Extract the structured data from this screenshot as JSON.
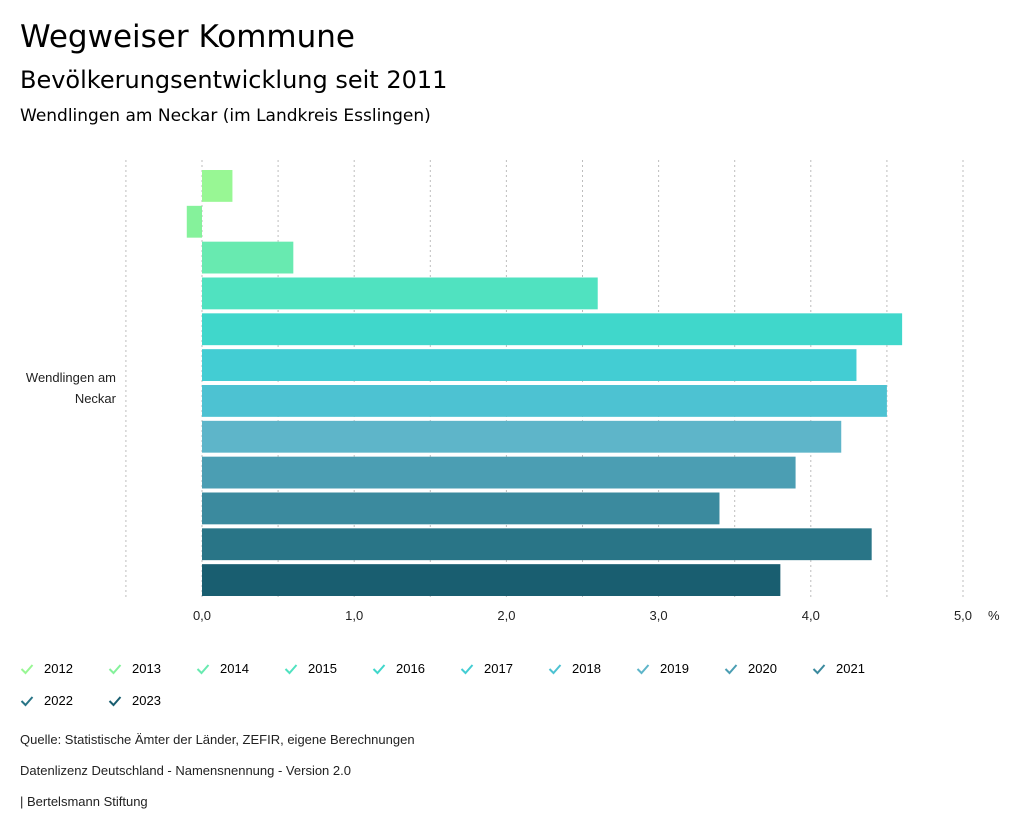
{
  "header": {
    "title": "Wegweiser Kommune",
    "subtitle": "Bevölkerungsentwicklung seit 2011",
    "region": "Wendlingen am Neckar (im Landkreis Esslingen)"
  },
  "chart_data": {
    "type": "bar",
    "orientation": "horizontal",
    "categories": [
      "Wendlingen am Neckar"
    ],
    "category_lines": [
      "Wendlingen am",
      "Neckar"
    ],
    "unit": "%",
    "xlim": [
      -0.5,
      5.0
    ],
    "xticks": [
      0.0,
      1.0,
      2.0,
      3.0,
      4.0,
      5.0
    ],
    "xtick_labels": [
      "0,0",
      "1,0",
      "2,0",
      "3,0",
      "4,0",
      "5,0"
    ],
    "grid": "vertical-dotted",
    "series": [
      {
        "name": "2012",
        "values": [
          0.2
        ],
        "color": "#98f794"
      },
      {
        "name": "2013",
        "values": [
          -0.1
        ],
        "color": "#85f29b"
      },
      {
        "name": "2014",
        "values": [
          0.6
        ],
        "color": "#68eab0"
      },
      {
        "name": "2015",
        "values": [
          2.6
        ],
        "color": "#50e2c0"
      },
      {
        "name": "2016",
        "values": [
          4.6
        ],
        "color": "#40d7cb"
      },
      {
        "name": "2017",
        "values": [
          4.3
        ],
        "color": "#43cdd3"
      },
      {
        "name": "2018",
        "values": [
          4.5
        ],
        "color": "#4dc2d2"
      },
      {
        "name": "2019",
        "values": [
          4.2
        ],
        "color": "#5eb5c9"
      },
      {
        "name": "2020",
        "values": [
          3.9
        ],
        "color": "#4b9eb3"
      },
      {
        "name": "2021",
        "values": [
          3.4
        ],
        "color": "#3b8a9e"
      },
      {
        "name": "2022",
        "values": [
          4.4
        ],
        "color": "#297587"
      },
      {
        "name": "2023",
        "values": [
          3.8
        ],
        "color": "#195e70"
      }
    ]
  },
  "footer": {
    "source": "Quelle: Statistische Ämter der Länder, ZEFIR, eigene Berechnungen",
    "license": "Datenlizenz Deutschland - Namensnennung - Version 2.0",
    "credit": "| Bertelsmann Stiftung"
  }
}
